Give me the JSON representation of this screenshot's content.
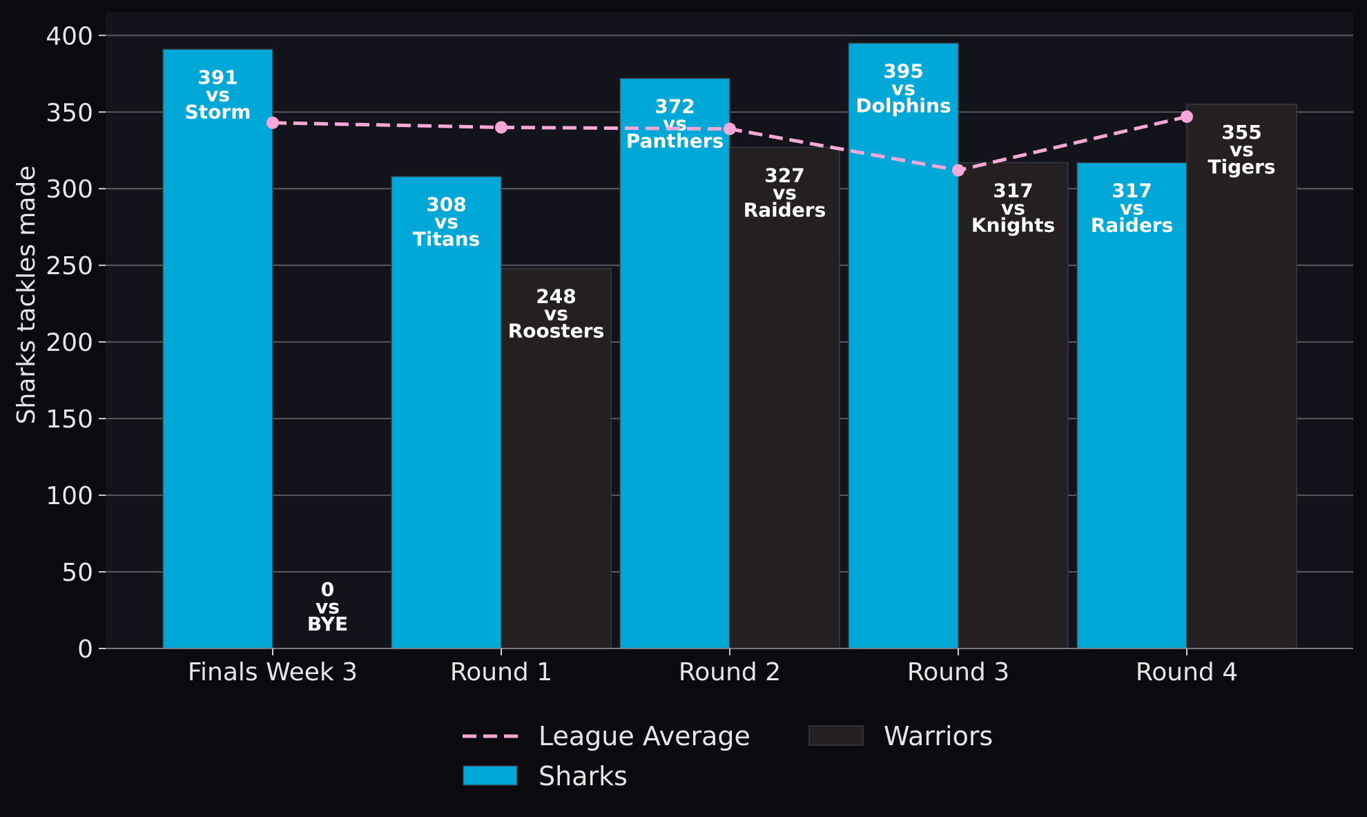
{
  "chart_data": {
    "type": "bar",
    "title": "",
    "xlabel": "",
    "ylabel": "Sharks tackles made",
    "categories": [
      "Finals Week 3",
      "Round 1",
      "Round 2",
      "Round 3",
      "Round 4"
    ],
    "ylim": [
      0,
      415
    ],
    "yticks": [
      0,
      50,
      100,
      150,
      200,
      250,
      300,
      350,
      400
    ],
    "grid": true,
    "series": [
      {
        "name": "Sharks",
        "type": "bar",
        "color": "#00a8d8",
        "values": [
          391,
          308,
          372,
          395,
          317
        ],
        "opponents": [
          "Storm",
          "Titans",
          "Panthers",
          "Dolphins",
          "Raiders"
        ]
      },
      {
        "name": "Warriors",
        "type": "bar",
        "color": "#242021",
        "values": [
          0,
          248,
          327,
          317,
          355
        ],
        "opponents": [
          "BYE",
          "Roosters",
          "Raiders",
          "Knights",
          "Tigers"
        ]
      },
      {
        "name": "League Average",
        "type": "line",
        "style": "dashed",
        "color": "#f7a8d8",
        "values": [
          343,
          340,
          339,
          312,
          347
        ]
      }
    ],
    "label_separator": "vs",
    "legend": {
      "position": "bottom-center",
      "entries": [
        "League Average",
        "Warriors",
        "Sharks"
      ]
    }
  },
  "colors": {
    "page_background": "#0b0b0f",
    "plot_background": "#12131b",
    "grid": "#5a5a5e",
    "text": "#e6e6e6"
  }
}
